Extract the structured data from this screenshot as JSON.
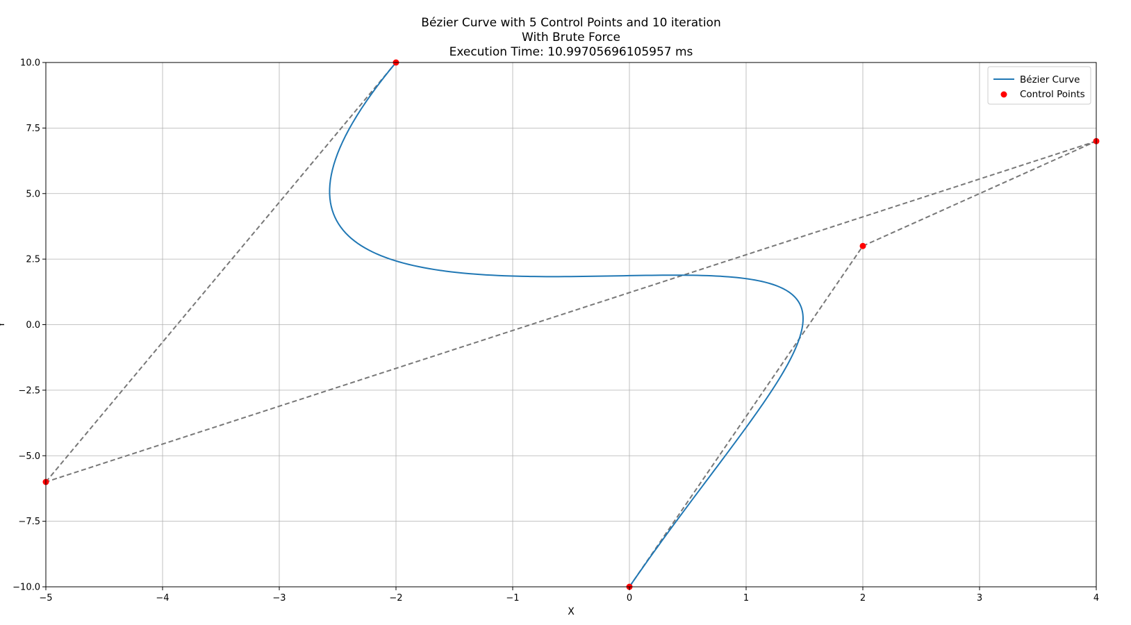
{
  "chart_data": {
    "type": "line",
    "title_lines": [
      "Bézier Curve with 5 Control Points and 10 iteration",
      "With Brute Force",
      "Execution Time: 10.99705696105957 ms"
    ],
    "xlabel": "X",
    "ylabel": "Y",
    "xlim": [
      -5,
      4
    ],
    "ylim": [
      -10,
      10
    ],
    "xticks": [
      -5,
      -4,
      -3,
      -2,
      -1,
      0,
      1,
      2,
      3,
      4
    ],
    "yticks": [
      -10.0,
      -7.5,
      -5.0,
      -2.5,
      0.0,
      2.5,
      5.0,
      7.5,
      10.0
    ],
    "xtick_labels": [
      "−5",
      "−4",
      "−3",
      "−2",
      "−1",
      "0",
      "1",
      "2",
      "3",
      "4"
    ],
    "ytick_labels": [
      "−10.0",
      "−7.5",
      "−5.0",
      "−2.5",
      "0.0",
      "2.5",
      "5.0",
      "7.5",
      "10.0"
    ],
    "grid": true,
    "legend_position": "top-right",
    "series": [
      {
        "name": "Bézier Curve",
        "color": "#1f77b4",
        "kind": "bezier",
        "samples": 200
      },
      {
        "name": "Control Points",
        "color": "#ff0000",
        "kind": "scatter"
      }
    ],
    "control_points": [
      {
        "x": 0,
        "y": -10
      },
      {
        "x": 2,
        "y": 3
      },
      {
        "x": 4,
        "y": 7
      },
      {
        "x": -5,
        "y": -6
      },
      {
        "x": -2,
        "y": 10
      }
    ],
    "control_polygon_color": "#777777"
  }
}
